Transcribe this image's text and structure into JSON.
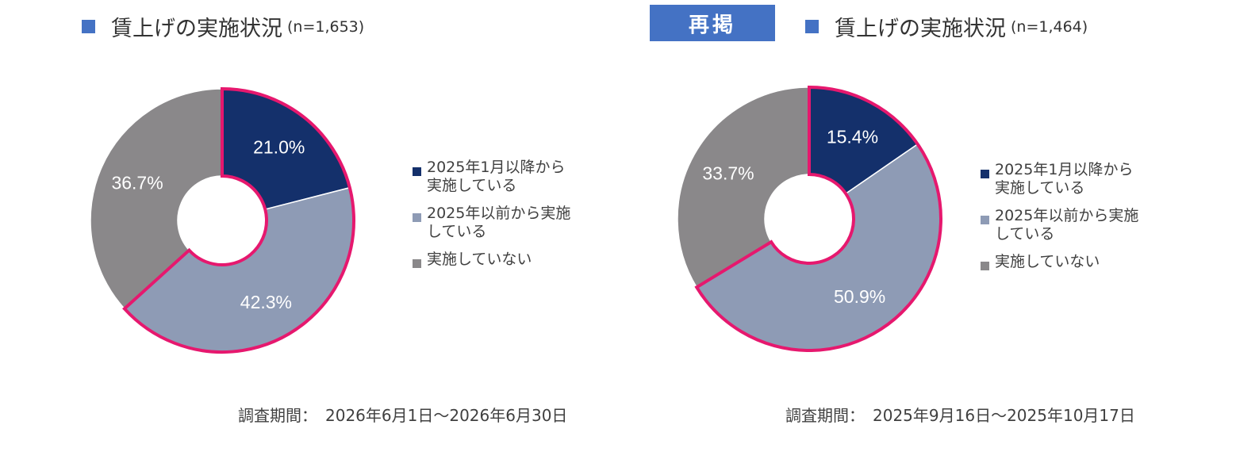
{
  "colors": {
    "accent": "#4472C4",
    "highlight_border": "#E6186E",
    "series": [
      "#14306B",
      "#8E9BB5",
      "#8A888A"
    ]
  },
  "badge": {
    "label": "再掲"
  },
  "chart_data": [
    {
      "type": "pie",
      "donut": true,
      "title": "賃上げの実施状況",
      "n_label": "(n=1,653)",
      "categories": [
        "2025年1月以降から実施している",
        "2025年以前から実施している",
        "実施していない"
      ],
      "values": [
        21.0,
        42.3,
        36.7
      ],
      "data_labels": [
        "21.0%",
        "42.3%",
        "36.7%"
      ],
      "legend": {
        "position": "right",
        "entries": [
          {
            "lines": [
              "2025年1月以降から",
              "実施している"
            ]
          },
          {
            "lines": [
              "2025年以前から実施",
              "している"
            ]
          },
          {
            "lines": [
              "実施していない"
            ]
          }
        ]
      },
      "highlighted_categories": [
        0,
        1
      ],
      "footer": {
        "label": "調査期間：",
        "value": "2026年6月1日～2026年6月30日"
      }
    },
    {
      "type": "pie",
      "donut": true,
      "title": "賃上げの実施状況",
      "n_label": "(n=1,464)",
      "categories": [
        "2025年1月以降から実施している",
        "2025年以前から実施している",
        "実施していない"
      ],
      "values": [
        15.4,
        50.9,
        33.7
      ],
      "data_labels": [
        "15.4%",
        "50.9%",
        "33.7%"
      ],
      "legend": {
        "position": "right",
        "entries": [
          {
            "lines": [
              "2025年1月以降から",
              "実施している"
            ]
          },
          {
            "lines": [
              "2025年以前から実施",
              "している"
            ]
          },
          {
            "lines": [
              "実施していない"
            ]
          }
        ]
      },
      "highlighted_categories": [
        0,
        1
      ],
      "footer": {
        "label": "調査期間：",
        "value": "2025年9月16日～2025年10月17日"
      }
    }
  ]
}
